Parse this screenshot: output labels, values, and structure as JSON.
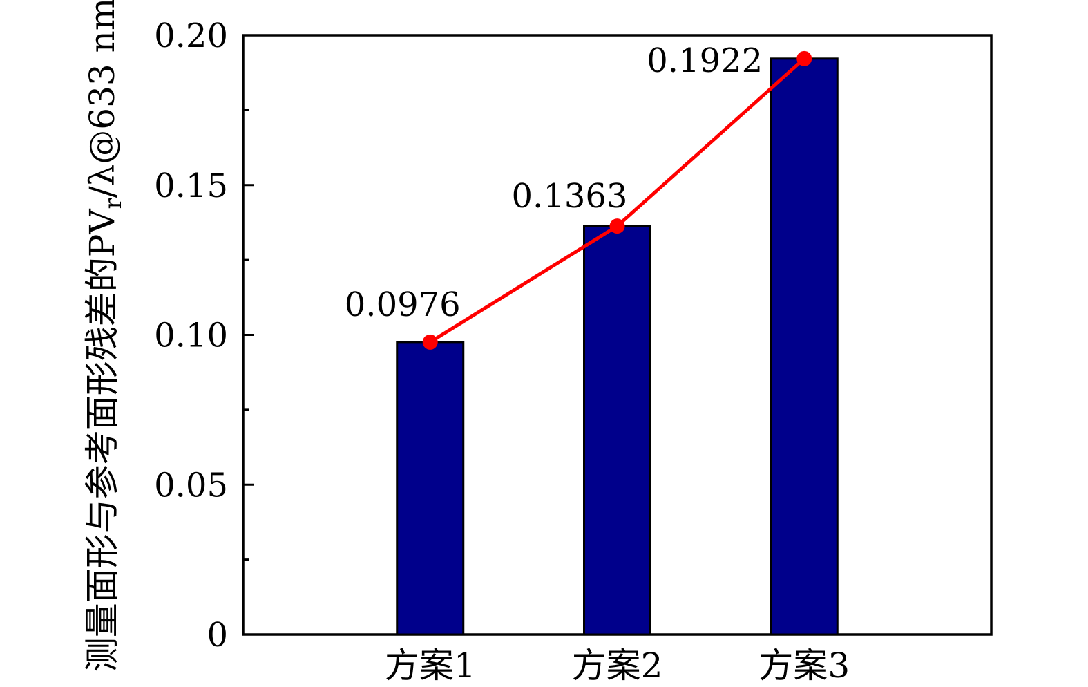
{
  "chart_data": {
    "type": "bar",
    "categories": [
      "方案1",
      "方案2",
      "方案3"
    ],
    "values": [
      0.0976,
      0.1363,
      0.1922
    ],
    "value_labels": [
      "0.0976",
      "0.1363",
      "0.1922"
    ],
    "series": [
      {
        "name": "bar-series",
        "type": "bar",
        "values": [
          0.0976,
          0.1363,
          0.1922
        ]
      },
      {
        "name": "trend-line-overlay",
        "type": "line",
        "marker": "circle",
        "values": [
          0.0976,
          0.1363,
          0.1922
        ]
      }
    ],
    "title": "",
    "xlabel": "",
    "ylabel": "测量面形与参考面形残差的PVr/λ@633 nm",
    "ylabel_parts": {
      "prefix": "测量面形与参考面形残差的PV",
      "subscript": "r",
      "suffix": "/λ@633 nm"
    },
    "ylim": [
      0,
      0.2
    ],
    "y_major_ticks": [
      0,
      0.05,
      0.1,
      0.15,
      0.2
    ],
    "y_tick_labels": [
      "0",
      "0.05",
      "0.10",
      "0.15",
      "0.20"
    ],
    "y_minor_ticks": [
      0.025,
      0.075,
      0.125,
      0.175
    ],
    "grid": false,
    "legend_position": "none",
    "frame": "full-box",
    "tick_direction": "in",
    "colors": {
      "bar_fill": "#00008B",
      "bar_edge": "#000000",
      "line": "#FF0000",
      "marker": "#FF0000",
      "axis": "#000000",
      "text": "#000000",
      "background": "#FFFFFF"
    }
  }
}
